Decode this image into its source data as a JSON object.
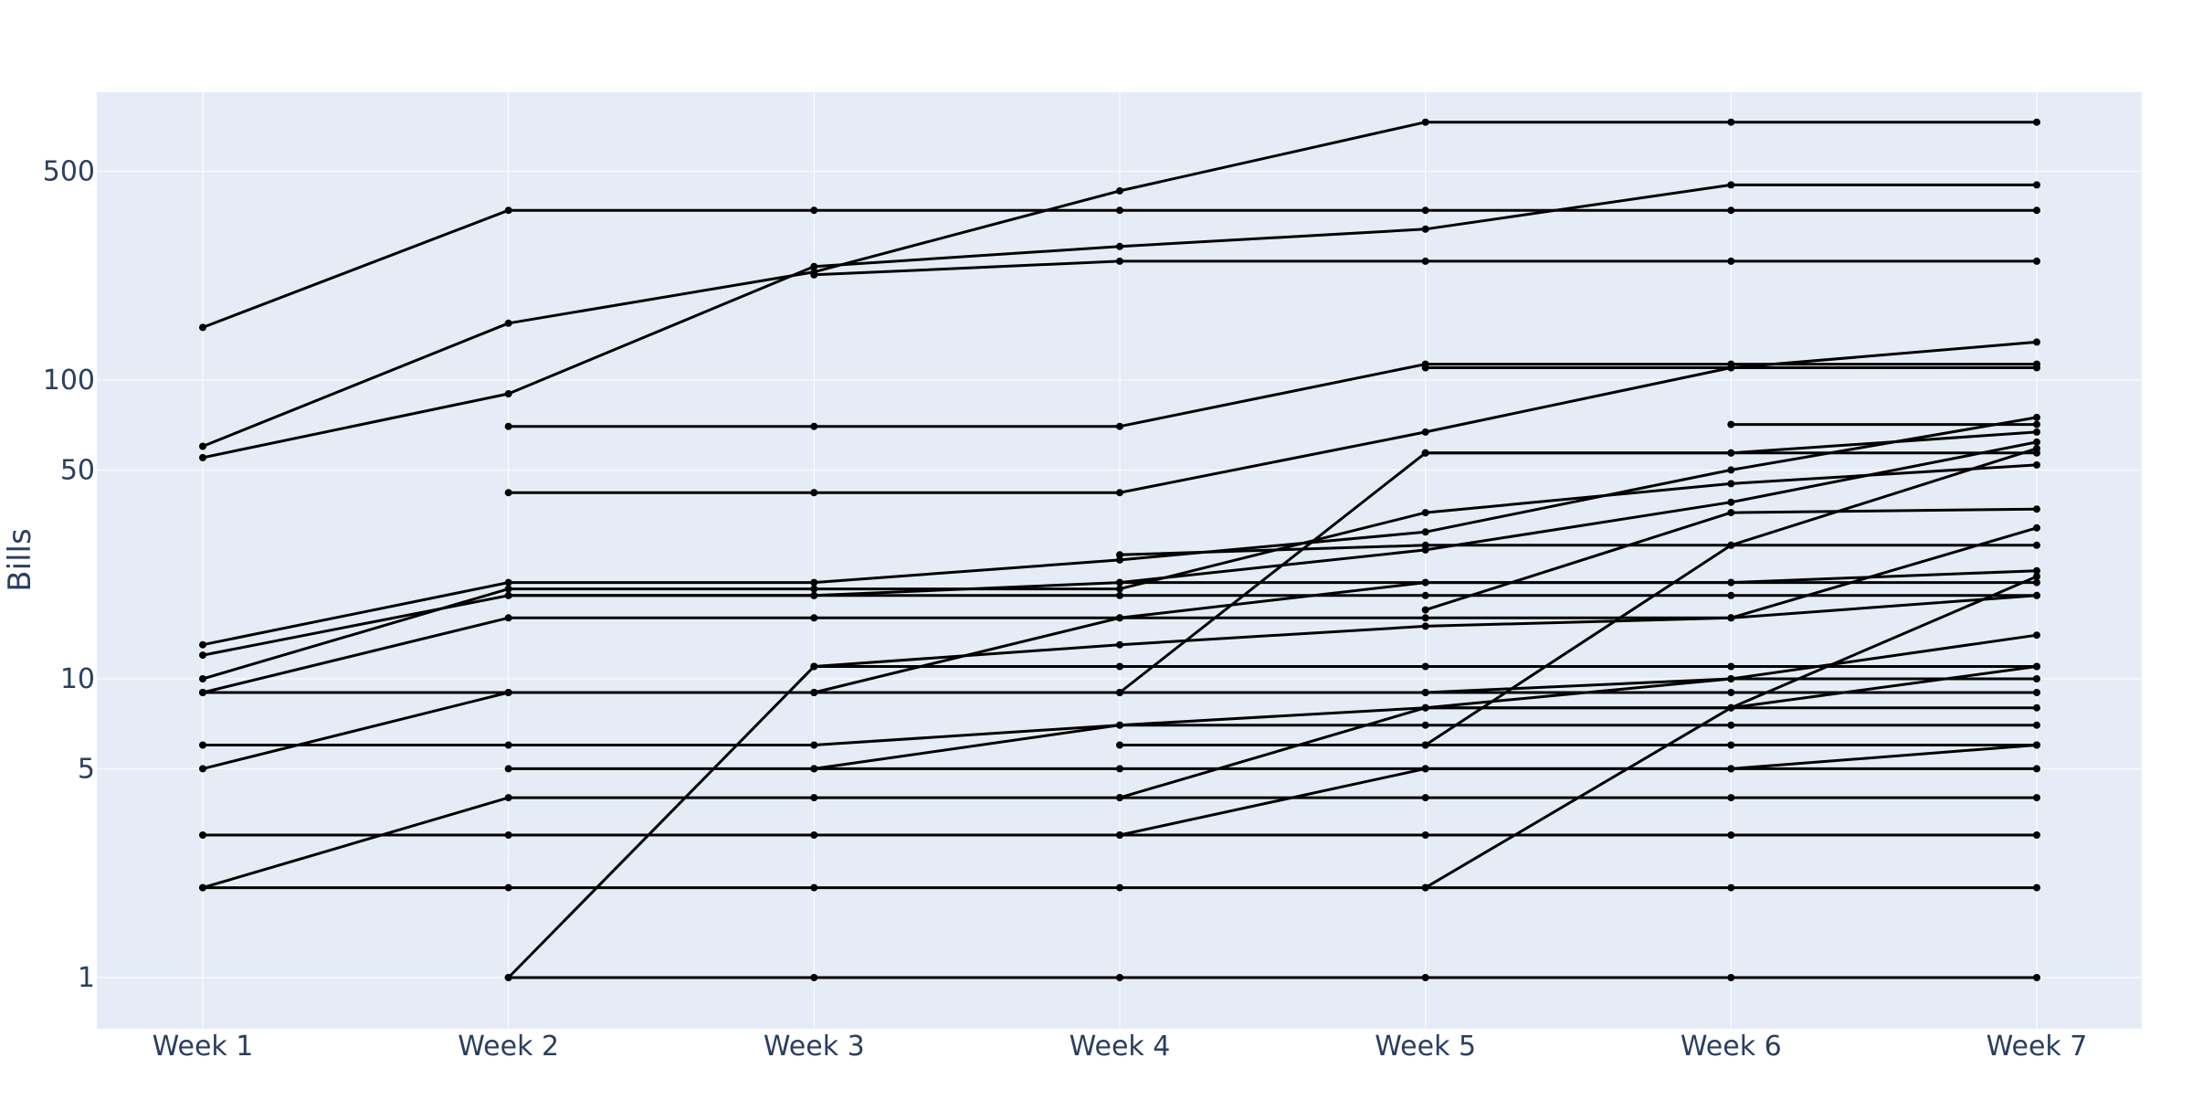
{
  "chart_data": {
    "type": "line",
    "title": "",
    "xlabel": "",
    "ylabel": "Bills",
    "y_scale": "log",
    "ylim": [
      0.8,
      1000
    ],
    "categories": [
      "Week 1",
      "Week 2",
      "Week 3",
      "Week 4",
      "Week 5",
      "Week 6",
      "Week 7"
    ],
    "y_ticks": [
      1,
      5,
      10,
      50,
      100,
      500
    ],
    "y_tick_labels": [
      "1",
      "5",
      "10",
      "50",
      "100",
      "500"
    ],
    "grid": true,
    "legend": "none",
    "colors": {
      "plot_background": "#e5ecf6",
      "grid": "#ffffff",
      "line": "#000000",
      "text": "#2a3f5f"
    },
    "series": [
      {
        "values": [
          150,
          370,
          370,
          370,
          370,
          370,
          370
        ]
      },
      {
        "values": [
          60,
          155,
          230,
          430,
          730,
          730,
          730
        ]
      },
      {
        "values": [
          55,
          90,
          240,
          280,
          320,
          450,
          450
        ]
      },
      {
        "values": [
          null,
          null,
          225,
          250,
          250,
          250,
          250
        ]
      },
      {
        "values": [
          null,
          70,
          70,
          70,
          113,
          113,
          113
        ]
      },
      {
        "values": [
          null,
          null,
          null,
          null,
          110,
          110,
          110
        ]
      },
      {
        "values": [
          null,
          null,
          null,
          null,
          null,
          71,
          71
        ]
      },
      {
        "values": [
          null,
          42,
          42,
          42,
          67,
          110,
          134
        ]
      },
      {
        "values": [
          null,
          null,
          null,
          null,
          57,
          57,
          67
        ]
      },
      {
        "values": [
          null,
          null,
          null,
          9,
          57,
          57,
          57
        ]
      },
      {
        "values": [
          13,
          21,
          21,
          25,
          31,
          50,
          75
        ]
      },
      {
        "values": [
          12,
          19,
          19,
          21,
          27,
          39,
          62
        ]
      },
      {
        "values": [
          10,
          20,
          20,
          20,
          36,
          45,
          52
        ]
      },
      {
        "values": [
          9,
          16,
          16,
          16,
          16,
          16,
          32
        ]
      },
      {
        "values": [
          null,
          null,
          null,
          26,
          28,
          28,
          28
        ]
      },
      {
        "values": [
          null,
          null,
          null,
          21,
          21,
          21,
          21
        ]
      },
      {
        "values": [
          null,
          null,
          null,
          null,
          17,
          36,
          37
        ]
      },
      {
        "values": [
          null,
          19,
          19,
          19,
          19,
          19,
          19
        ]
      },
      {
        "values": [
          null,
          null,
          9,
          16,
          21,
          21,
          23
        ]
      },
      {
        "values": [
          null,
          null,
          11,
          13,
          15,
          16,
          19
        ]
      },
      {
        "values": [
          5,
          9,
          9,
          9,
          9,
          9,
          9
        ]
      },
      {
        "values": [
          9,
          9,
          9,
          9,
          9,
          10,
          10
        ]
      },
      {
        "values": [
          null,
          null,
          null,
          null,
          8,
          10,
          14
        ]
      },
      {
        "values": [
          null,
          null,
          null,
          null,
          6,
          28,
          59
        ]
      },
      {
        "values": [
          6,
          6,
          6,
          7,
          8,
          8,
          8
        ]
      },
      {
        "values": [
          null,
          null,
          null,
          6,
          6,
          6,
          6
        ]
      },
      {
        "values": [
          null,
          5,
          5,
          5,
          5,
          5,
          5
        ]
      },
      {
        "values": [
          null,
          null,
          null,
          4,
          8,
          8,
          11
        ]
      },
      {
        "values": [
          null,
          null,
          5,
          7,
          7,
          7,
          7
        ]
      },
      {
        "values": [
          2,
          4,
          4,
          4,
          4,
          4,
          4
        ]
      },
      {
        "values": [
          null,
          null,
          null,
          3,
          5,
          5,
          6
        ]
      },
      {
        "values": [
          3,
          3,
          3,
          3,
          3,
          3,
          3
        ]
      },
      {
        "values": [
          2,
          2,
          2,
          2,
          2,
          2,
          2
        ]
      },
      {
        "values": [
          null,
          null,
          null,
          null,
          2,
          8,
          22
        ]
      },
      {
        "values": [
          null,
          1,
          1,
          1,
          1,
          1,
          1
        ]
      },
      {
        "values": [
          null,
          1,
          11,
          11,
          11,
          11,
          11
        ]
      }
    ]
  }
}
